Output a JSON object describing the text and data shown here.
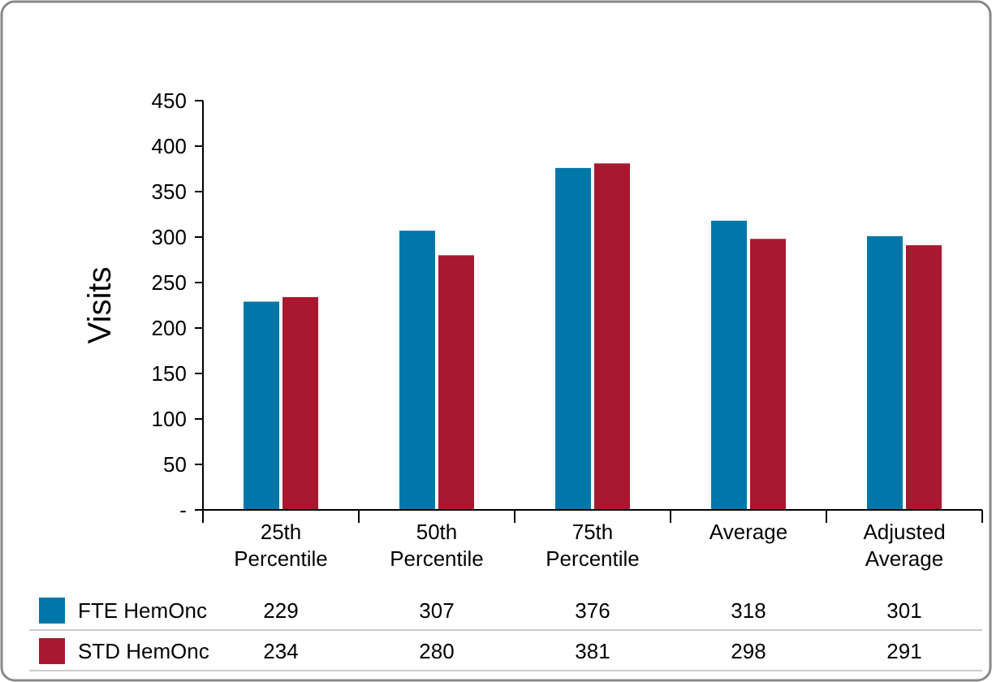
{
  "chart_data": {
    "type": "bar",
    "ylabel": "Visits",
    "categories": [
      "25th Percentile",
      "50th Percentile",
      "75th Percentile",
      "Average",
      "Adjusted Average"
    ],
    "series": [
      {
        "name": "FTE HemOnc",
        "color": "#0077a8",
        "values": [
          229,
          307,
          376,
          318,
          301
        ]
      },
      {
        "name": "STD HemOnc",
        "color": "#a8182f",
        "values": [
          234,
          280,
          381,
          298,
          291
        ]
      }
    ],
    "ylim": [
      0,
      450
    ],
    "yticks": [
      {
        "value": 0,
        "label": "-"
      },
      50,
      100,
      150,
      200,
      250,
      300,
      350,
      400,
      450
    ],
    "grid": false,
    "legend": "bottom",
    "data_labels": true
  }
}
